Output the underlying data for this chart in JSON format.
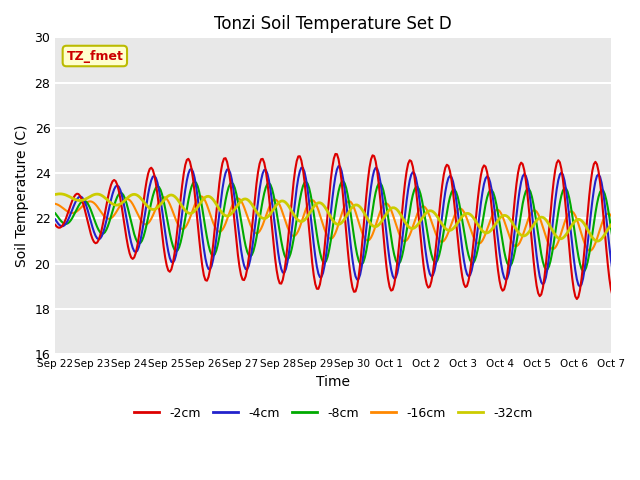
{
  "title": "Tonzi Soil Temperature Set D",
  "xlabel": "Time",
  "ylabel": "Soil Temperature (C)",
  "ylim": [
    16,
    30
  ],
  "annotation": "TZ_fmet",
  "annotation_color": "#cc0000",
  "annotation_bg": "#ffffcc",
  "annotation_border": "#bbbb00",
  "background_color": "#e8e8e8",
  "plot_bg": "#ebebeb",
  "grid_color": "white",
  "series_colors": [
    "#dd0000",
    "#2222cc",
    "#00aa00",
    "#ff8800",
    "#cccc00"
  ],
  "series_labels": [
    "-2cm",
    "-4cm",
    "-8cm",
    "-16cm",
    "-32cm"
  ],
  "series_linewidths": [
    1.5,
    1.5,
    1.5,
    1.5,
    2.0
  ],
  "xtick_labels": [
    "Sep 22",
    "Sep 23",
    "Sep 24",
    "Sep 25",
    "Sep 26",
    "Sep 27",
    "Sep 28",
    "Sep 29",
    "Sep 30",
    "Oct 1",
    "Oct 2",
    "Oct 3",
    "Oct 4",
    "Oct 5",
    "Oct 6",
    "Oct 7"
  ],
  "ytick_values": [
    16,
    18,
    20,
    22,
    24,
    26,
    28,
    30
  ],
  "figsize": [
    6.4,
    4.8
  ],
  "dpi": 100
}
